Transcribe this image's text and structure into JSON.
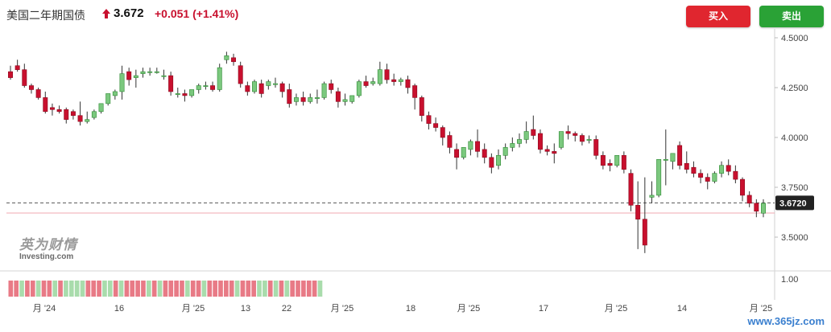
{
  "header": {
    "title": "美国二年期国债",
    "price": "3.672",
    "change": "+0.051 (+1.41%)"
  },
  "buttons": {
    "buy": "买入",
    "sell": "卖出"
  },
  "logo": {
    "cn": "英为财情",
    "en": "Investing.com"
  },
  "watermark": "www.365jz.com",
  "colors": {
    "up": "#2aa236",
    "down": "#c8102e",
    "accent": "#e0262f"
  },
  "chart_data": {
    "type": "candlestick",
    "y_ticks": [
      "4.5000",
      "4.2500",
      "4.0000",
      "3.7500",
      "3.5000"
    ],
    "ylim": [
      3.45,
      4.51
    ],
    "current_value_label": "3.6720",
    "current_value": 3.672,
    "previous_close_line": 3.621,
    "x_labels": [
      "月 '24",
      "16",
      "月 '25",
      "13",
      "22",
      "月 '25",
      "18",
      "月 '25",
      "17",
      "月 '25",
      "14",
      "月 '25"
    ],
    "candles": [
      [
        4.33,
        4.36,
        4.3,
        4.29
      ],
      [
        4.36,
        4.39,
        4.34,
        4.33
      ],
      [
        4.34,
        4.37,
        4.26,
        4.25
      ],
      [
        4.26,
        4.27,
        4.24,
        4.22
      ],
      [
        4.24,
        4.25,
        4.2,
        4.19
      ],
      [
        4.2,
        4.23,
        4.13,
        4.12
      ],
      [
        4.15,
        4.17,
        4.14,
        4.11
      ],
      [
        4.14,
        4.16,
        4.13,
        4.12
      ],
      [
        4.14,
        4.15,
        4.09,
        4.07
      ],
      [
        4.13,
        4.14,
        4.11,
        4.09
      ],
      [
        4.11,
        4.18,
        4.08,
        4.06
      ],
      [
        4.08,
        4.13,
        4.09,
        4.07
      ],
      [
        4.1,
        4.14,
        4.13,
        4.09
      ],
      [
        4.13,
        4.17,
        4.17,
        4.12
      ],
      [
        4.17,
        4.21,
        4.22,
        4.16
      ],
      [
        4.21,
        4.24,
        4.23,
        4.19
      ],
      [
        4.23,
        4.36,
        4.32,
        4.19
      ],
      [
        4.33,
        4.35,
        4.29,
        4.26
      ],
      [
        4.3,
        4.34,
        4.31,
        4.25
      ],
      [
        4.32,
        4.35,
        4.33,
        4.3
      ],
      [
        4.33,
        4.35,
        4.33,
        4.31
      ],
      [
        4.33,
        4.35,
        4.33,
        4.32
      ],
      [
        4.31,
        4.34,
        4.31,
        4.29
      ],
      [
        4.31,
        4.33,
        4.23,
        4.21
      ],
      [
        4.22,
        4.25,
        4.22,
        4.2
      ],
      [
        4.22,
        4.24,
        4.21,
        4.18
      ],
      [
        4.21,
        4.24,
        4.24,
        4.2
      ],
      [
        4.24,
        4.27,
        4.26,
        4.22
      ],
      [
        4.26,
        4.28,
        4.26,
        4.24
      ],
      [
        4.26,
        4.28,
        4.24,
        4.23
      ],
      [
        4.24,
        4.37,
        4.35,
        4.23
      ],
      [
        4.39,
        4.43,
        4.41,
        4.37
      ],
      [
        4.4,
        4.42,
        4.38,
        4.36
      ],
      [
        4.36,
        4.38,
        4.27,
        4.25
      ],
      [
        4.26,
        4.28,
        4.23,
        4.21
      ],
      [
        4.23,
        4.29,
        4.28,
        4.22
      ],
      [
        4.27,
        4.29,
        4.22,
        4.2
      ],
      [
        4.26,
        4.29,
        4.28,
        4.24
      ],
      [
        4.27,
        4.3,
        4.27,
        4.25
      ],
      [
        4.27,
        4.28,
        4.23,
        4.2
      ],
      [
        4.24,
        4.27,
        4.17,
        4.15
      ],
      [
        4.18,
        4.22,
        4.2,
        4.16
      ],
      [
        4.2,
        4.23,
        4.18,
        4.16
      ],
      [
        4.18,
        4.22,
        4.2,
        4.17
      ],
      [
        4.2,
        4.24,
        4.2,
        4.17
      ],
      [
        4.2,
        4.28,
        4.27,
        4.19
      ],
      [
        4.27,
        4.29,
        4.24,
        4.22
      ],
      [
        4.23,
        4.25,
        4.18,
        4.15
      ],
      [
        4.18,
        4.22,
        4.19,
        4.16
      ],
      [
        4.18,
        4.21,
        4.21,
        4.17
      ],
      [
        4.21,
        4.29,
        4.28,
        4.2
      ],
      [
        4.28,
        4.31,
        4.26,
        4.25
      ],
      [
        4.27,
        4.3,
        4.28,
        4.26
      ],
      [
        4.27,
        4.38,
        4.34,
        4.26
      ],
      [
        4.34,
        4.37,
        4.29,
        4.27
      ],
      [
        4.29,
        4.32,
        4.28,
        4.26
      ],
      [
        4.28,
        4.3,
        4.29,
        4.26
      ],
      [
        4.29,
        4.31,
        4.25,
        4.22
      ],
      [
        4.26,
        4.27,
        4.2,
        4.14
      ],
      [
        4.2,
        4.21,
        4.11,
        4.08
      ],
      [
        4.11,
        4.13,
        4.07,
        4.04
      ],
      [
        4.07,
        4.1,
        4.05,
        4.03
      ],
      [
        4.05,
        4.06,
        4.0,
        3.96
      ],
      [
        4.01,
        4.03,
        3.95,
        3.92
      ],
      [
        3.94,
        3.97,
        3.9,
        3.84
      ],
      [
        3.9,
        3.95,
        3.95,
        3.89
      ],
      [
        3.94,
        3.99,
        3.98,
        3.91
      ],
      [
        3.98,
        4.04,
        3.93,
        3.9
      ],
      [
        3.94,
        3.97,
        3.9,
        3.87
      ],
      [
        3.9,
        3.92,
        3.85,
        3.82
      ],
      [
        3.86,
        3.94,
        3.91,
        3.84
      ],
      [
        3.91,
        3.97,
        3.95,
        3.89
      ],
      [
        3.95,
        4.0,
        3.97,
        3.93
      ],
      [
        3.97,
        4.02,
        3.99,
        3.95
      ],
      [
        3.99,
        4.08,
        4.03,
        3.97
      ],
      [
        4.04,
        4.11,
        4.01,
        3.99
      ],
      [
        4.02,
        4.04,
        3.94,
        3.92
      ],
      [
        3.94,
        3.96,
        3.93,
        3.91
      ],
      [
        3.93,
        3.97,
        3.92,
        3.87
      ],
      [
        3.95,
        4.02,
        4.03,
        3.94
      ],
      [
        4.03,
        4.06,
        4.02,
        3.99
      ],
      [
        4.02,
        4.03,
        4.01,
        3.98
      ],
      [
        4.01,
        4.02,
        3.98,
        3.96
      ],
      [
        3.99,
        4.01,
        3.99,
        3.97
      ],
      [
        3.99,
        4.01,
        3.91,
        3.89
      ],
      [
        3.91,
        3.93,
        3.86,
        3.84
      ],
      [
        3.87,
        3.89,
        3.86,
        3.83
      ],
      [
        3.86,
        3.88,
        3.91,
        3.85
      ],
      [
        3.91,
        3.93,
        3.84,
        3.82
      ],
      [
        3.82,
        3.84,
        3.66,
        3.63
      ],
      [
        3.66,
        3.78,
        3.59,
        3.44
      ],
      [
        3.59,
        3.8,
        3.46,
        3.42
      ],
      [
        3.7,
        3.78,
        3.71,
        3.67
      ],
      [
        3.71,
        3.85,
        3.89,
        3.7
      ],
      [
        3.89,
        4.04,
        3.89,
        3.76
      ],
      [
        3.88,
        3.92,
        3.92,
        3.84
      ],
      [
        3.96,
        3.98,
        3.86,
        3.84
      ],
      [
        3.87,
        3.93,
        3.84,
        3.82
      ],
      [
        3.85,
        3.88,
        3.82,
        3.8
      ],
      [
        3.82,
        3.84,
        3.8,
        3.77
      ],
      [
        3.8,
        3.82,
        3.78,
        3.74
      ],
      [
        3.78,
        3.83,
        3.82,
        3.77
      ],
      [
        3.82,
        3.88,
        3.86,
        3.8
      ],
      [
        3.86,
        3.89,
        3.83,
        3.81
      ],
      [
        3.83,
        3.86,
        3.79,
        3.77
      ],
      [
        3.79,
        3.8,
        3.71,
        3.68
      ],
      [
        3.71,
        3.73,
        3.67,
        3.65
      ],
      [
        3.67,
        3.69,
        3.63,
        3.6
      ],
      [
        3.62,
        3.69,
        3.67,
        3.6
      ]
    ],
    "bottom_strip": {
      "label": "1.00",
      "pattern": [
        "r",
        "r",
        "g",
        "r",
        "r",
        "g",
        "r",
        "r",
        "g",
        "r",
        "g",
        "g",
        "g",
        "g",
        "r",
        "r",
        "r",
        "g",
        "g",
        "r",
        "g",
        "r",
        "r",
        "r",
        "r",
        "g",
        "r",
        "g",
        "r",
        "r",
        "r",
        "r",
        "g",
        "r",
        "r",
        "g",
        "r",
        "r",
        "r",
        "r",
        "r",
        "g",
        "r",
        "r",
        "r",
        "g",
        "g",
        "r",
        "g",
        "r",
        "g",
        "r",
        "r",
        "r",
        "r",
        "r",
        "g"
      ]
    }
  }
}
